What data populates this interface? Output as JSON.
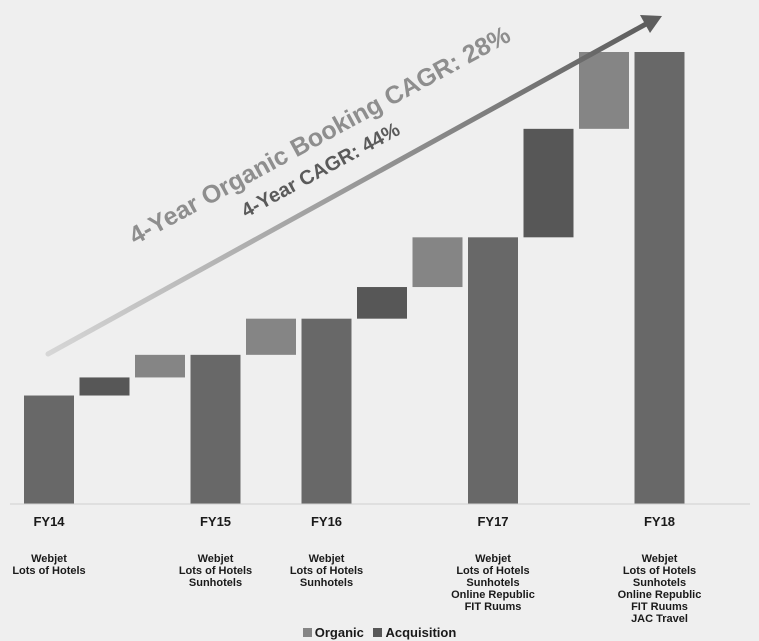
{
  "chart_data": {
    "type": "bar",
    "subtype": "waterfall",
    "title": "",
    "annotations": {
      "organic_cagr": "4-Year Organic Booking CAGR: 28%",
      "total_cagr": "4-Year CAGR: 44%"
    },
    "categories": [
      {
        "label": "FY14",
        "entities": [
          "Webjet",
          "Lots of Hotels"
        ]
      },
      {
        "label": "FY15",
        "entities": [
          "Webjet",
          "Lots of Hotels",
          "Sunhotels"
        ]
      },
      {
        "label": "FY16",
        "entities": [
          "Webjet",
          "Lots of Hotels",
          "Sunhotels"
        ]
      },
      {
        "label": "FY17",
        "entities": [
          "Webjet",
          "Lots of Hotels",
          "Sunhotels",
          "Online Republic",
          "FIT Ruums"
        ]
      },
      {
        "label": "FY18",
        "entities": [
          "Webjet",
          "Lots of Hotels",
          "Sunhotels",
          "Online Republic",
          "FIT Ruums",
          "JAC Travel"
        ]
      }
    ],
    "totals": [
      24,
      33,
      41,
      59,
      100
    ],
    "steps": [
      {
        "from": "FY14",
        "to": "FY15",
        "organic": 5,
        "acquisition": 4
      },
      {
        "from": "FY15",
        "to": "FY16",
        "organic": 8,
        "acquisition": 0
      },
      {
        "from": "FY16",
        "to": "FY17",
        "organic": 11,
        "acquisition": 7
      },
      {
        "from": "FY17",
        "to": "FY18",
        "organic": 17,
        "acquisition": 24
      }
    ],
    "ylim": [
      0,
      100
    ],
    "yaxis_shown": false,
    "grid": false,
    "legend": {
      "position": "bottom",
      "items": [
        "Organic",
        "Acquisition"
      ]
    },
    "colors": {
      "total": "#686868",
      "organic": "#858585",
      "acquisition": "#575757",
      "arrow": "#5e5e5e",
      "background": "#efefef"
    }
  }
}
